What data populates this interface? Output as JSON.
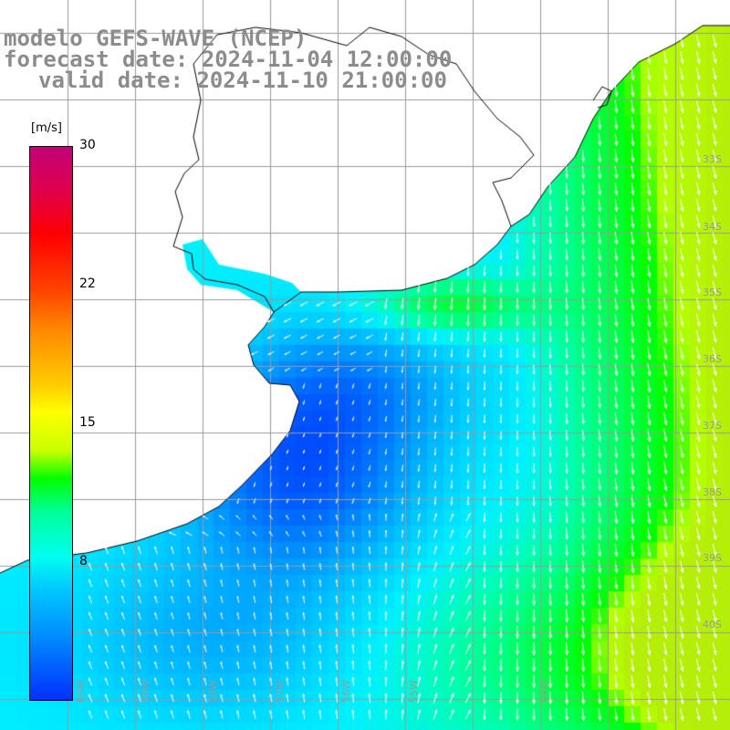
{
  "header": {
    "title_line1": "modelo GEFS-WAVE (NCEP)",
    "title_line2": "forecast date: 2024-11-04 12:00:00",
    "title_line3": "valid date: 2024-11-10 21:00:00"
  },
  "colorbar": {
    "units": "[m/s]",
    "tick_labels": [
      "30",
      "22",
      "15",
      "8"
    ],
    "tick_values": [
      30,
      22,
      15,
      8
    ],
    "min": 0,
    "max": 30
  },
  "map": {
    "lat_labels": [
      "33S",
      "34S",
      "35S",
      "36S",
      "37S",
      "38S",
      "39S",
      "40S"
    ],
    "lon_labels": [
      "60W",
      "59W",
      "58W",
      "57W",
      "56W",
      "55W",
      "54W"
    ],
    "colors": {
      "land": "#ffffff",
      "grid": "#9a9a9a",
      "coast": "#000000",
      "arrows": "#ffffff",
      "lat_label": "#9a9a9a"
    },
    "field_description_regions": "wind speed field: green near NE coast and SE corner, cyan mid, blue near coast center"
  }
}
